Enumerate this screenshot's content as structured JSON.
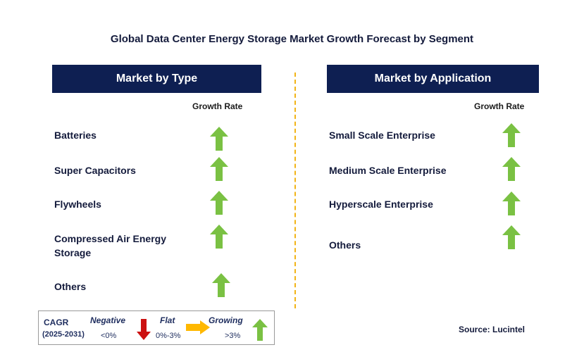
{
  "title": "Global Data Center Energy Storage Market Growth Forecast by Segment",
  "left_panel": {
    "header": "Market by Type",
    "growth_rate_label": "Growth Rate",
    "items": [
      {
        "label": "Batteries",
        "trend": "growing"
      },
      {
        "label": "Super Capacitors",
        "trend": "growing"
      },
      {
        "label": "Flywheels",
        "trend": "growing"
      },
      {
        "label": "Compressed Air Energy Storage",
        "trend": "growing"
      },
      {
        "label": "Others",
        "trend": "growing"
      }
    ]
  },
  "right_panel": {
    "header": "Market by Application",
    "growth_rate_label": "Growth Rate",
    "items": [
      {
        "label": "Small Scale Enterprise",
        "trend": "growing"
      },
      {
        "label": "Medium Scale Enterprise",
        "trend": "growing"
      },
      {
        "label": "Hyperscale Enterprise",
        "trend": "growing"
      },
      {
        "label": "Others",
        "trend": "growing"
      }
    ]
  },
  "legend": {
    "cagr_label": "CAGR",
    "period": "(2025-2031)",
    "negative": {
      "label": "Negative",
      "range": "<0%",
      "icon": "down-arrow-icon",
      "color": "#cc1111"
    },
    "flat": {
      "label": "Flat",
      "range": "0%-3%",
      "icon": "right-arrow-icon",
      "color": "#ffb800"
    },
    "growing": {
      "label": "Growing",
      "range": ">3%",
      "icon": "up-arrow-icon",
      "color": "#7ac143"
    }
  },
  "source": "Source: Lucintel",
  "colors": {
    "header_bg": "#0e1f52",
    "divider": "#f2b417",
    "growth_arrow": "#7ac143"
  }
}
